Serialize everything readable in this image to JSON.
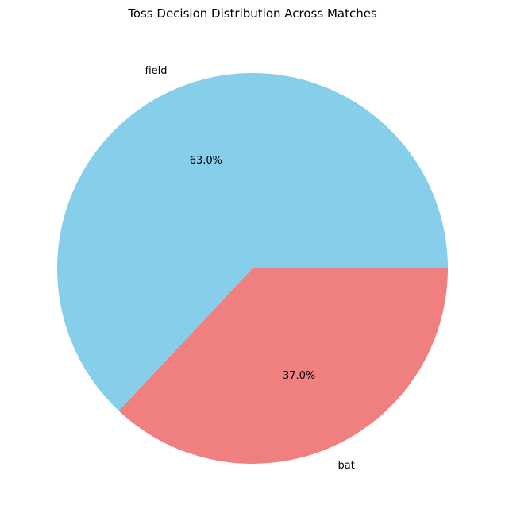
{
  "chart_data": {
    "type": "pie",
    "title": "Toss Decision Distribution Across Matches",
    "labels": [
      "field",
      "bat"
    ],
    "values": [
      63.0,
      37.0
    ],
    "percent_labels": [
      "63.0%",
      "37.0%"
    ],
    "colors": [
      "#87ceeb",
      "#f08080"
    ],
    "start_angle_deg": 0,
    "direction": "counterclockwise",
    "legend": "none"
  }
}
